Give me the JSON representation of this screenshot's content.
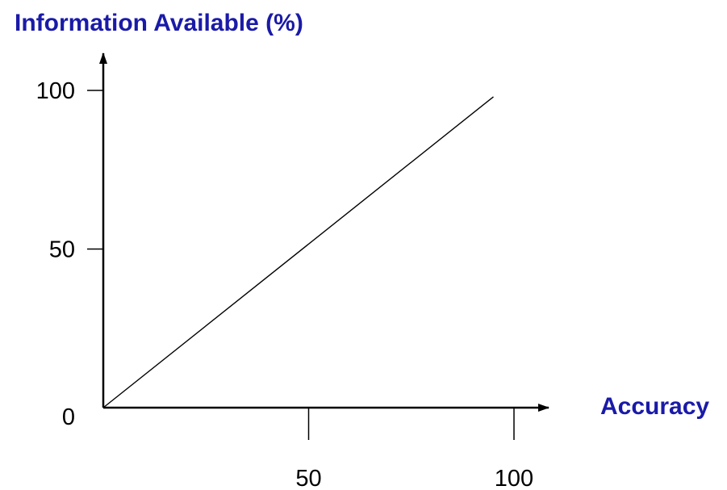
{
  "chart_data": {
    "type": "line",
    "title": "",
    "ylabel": "Information Available (%)",
    "xlabel": "Accuracy",
    "xlim": [
      0,
      100
    ],
    "ylim": [
      0,
      100
    ],
    "x_ticks": [
      {
        "value": 50,
        "label": "50"
      },
      {
        "value": 100,
        "label": "100"
      }
    ],
    "y_ticks": [
      {
        "value": 0,
        "label": "0"
      },
      {
        "value": 50,
        "label": "50"
      },
      {
        "value": 100,
        "label": "100"
      }
    ],
    "grid": false,
    "legend": "none",
    "series": [
      {
        "color": "#000000",
        "points": [
          {
            "x": 0,
            "y": 0
          },
          {
            "x": 95,
            "y": 98
          }
        ]
      }
    ]
  },
  "colors": {
    "axis_title": "#1a1aa8",
    "axis_line": "#000000",
    "text": "#000000"
  }
}
